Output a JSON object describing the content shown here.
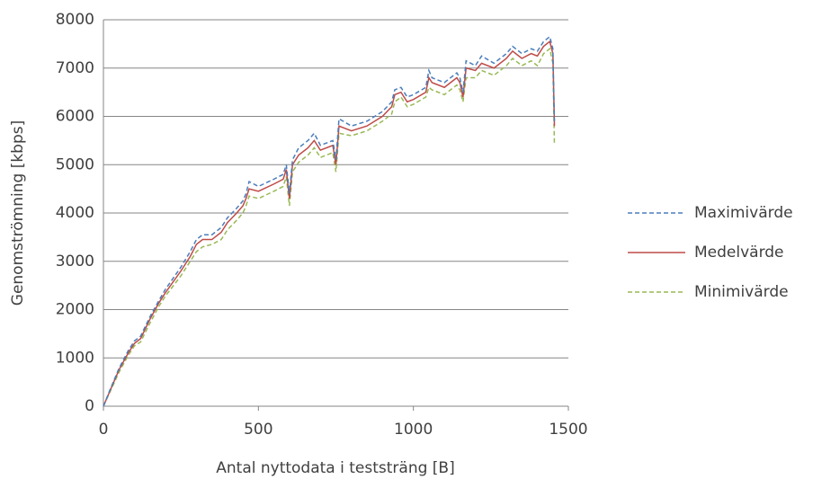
{
  "chart_data": {
    "type": "line",
    "xlabel": "Antal nyttodata i teststräng [B]",
    "ylabel": "Genomströmning [kbps]",
    "x": [
      0,
      20,
      50,
      80,
      100,
      120,
      150,
      180,
      200,
      250,
      280,
      300,
      320,
      350,
      380,
      400,
      430,
      450,
      460,
      470,
      500,
      550,
      580,
      590,
      600,
      610,
      630,
      660,
      680,
      700,
      740,
      750,
      760,
      800,
      850,
      900,
      930,
      940,
      960,
      980,
      1000,
      1040,
      1050,
      1060,
      1100,
      1140,
      1150,
      1160,
      1170,
      1200,
      1220,
      1260,
      1300,
      1320,
      1350,
      1380,
      1400,
      1420,
      1440,
      1450,
      1455
    ],
    "series": [
      {
        "name": "Maximivärde",
        "color": "#4a7ebb",
        "dash": true,
        "values": [
          0,
          320,
          780,
          1150,
          1350,
          1450,
          1850,
          2200,
          2420,
          2880,
          3200,
          3450,
          3550,
          3550,
          3700,
          3900,
          4100,
          4250,
          4400,
          4650,
          4550,
          4700,
          4800,
          5000,
          4400,
          5100,
          5350,
          5500,
          5650,
          5400,
          5500,
          5100,
          5950,
          5800,
          5900,
          6100,
          6300,
          6550,
          6600,
          6400,
          6450,
          6600,
          6950,
          6800,
          6700,
          6900,
          6800,
          6500,
          7150,
          7050,
          7250,
          7100,
          7300,
          7450,
          7300,
          7400,
          7350,
          7550,
          7650,
          7400,
          5900
        ]
      },
      {
        "name": "Medelvärde",
        "color": "#be4b48",
        "dash": false,
        "values": [
          0,
          300,
          750,
          1100,
          1300,
          1400,
          1800,
          2150,
          2350,
          2800,
          3100,
          3350,
          3450,
          3450,
          3600,
          3800,
          4000,
          4150,
          4300,
          4500,
          4450,
          4600,
          4700,
          4900,
          4300,
          5000,
          5200,
          5350,
          5500,
          5300,
          5400,
          5000,
          5800,
          5700,
          5800,
          6000,
          6200,
          6450,
          6500,
          6300,
          6350,
          6500,
          6800,
          6700,
          6600,
          6800,
          6700,
          6400,
          7000,
          6950,
          7100,
          7000,
          7200,
          7350,
          7200,
          7300,
          7250,
          7450,
          7550,
          7300,
          5800
        ]
      },
      {
        "name": "Minimivärde",
        "color": "#98b954",
        "dash": true,
        "values": [
          0,
          280,
          700,
          1050,
          1250,
          1330,
          1720,
          2080,
          2280,
          2700,
          3000,
          3200,
          3300,
          3350,
          3450,
          3650,
          3850,
          4000,
          4150,
          4350,
          4300,
          4450,
          4550,
          4750,
          4150,
          4850,
          5050,
          5200,
          5350,
          5150,
          5250,
          4850,
          5650,
          5600,
          5700,
          5900,
          6050,
          6300,
          6400,
          6200,
          6250,
          6400,
          6600,
          6550,
          6450,
          6650,
          6550,
          6300,
          6800,
          6800,
          6950,
          6850,
          7050,
          7200,
          7050,
          7150,
          7050,
          7300,
          7400,
          7100,
          5400
        ]
      }
    ],
    "xlim": [
      0,
      1500
    ],
    "xticks": [
      0,
      500,
      1000,
      1500
    ],
    "ylim": [
      0,
      8000
    ],
    "yticks": [
      0,
      1000,
      2000,
      3000,
      4000,
      5000,
      6000,
      7000,
      8000
    ],
    "grid": true,
    "legend": "right"
  }
}
